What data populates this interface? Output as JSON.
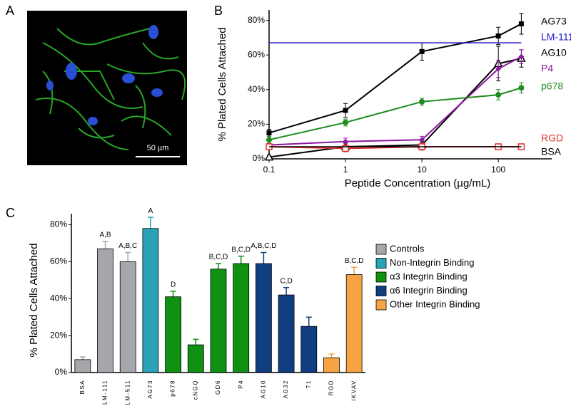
{
  "panel_a": {
    "panel_label": "A",
    "scale_bar": "50 µm"
  },
  "chart_data": [
    {
      "type": "line",
      "panel_label": "B",
      "x_label": "Peptide Concentration (µg/mL)",
      "y_label": "% Plated Cells Attached",
      "x": [
        0.1,
        1,
        10,
        100,
        200
      ],
      "xscale": "log",
      "xlim": [
        0.1,
        500
      ],
      "xticks": [
        0.1,
        1,
        10,
        100
      ],
      "ylim": [
        0,
        86
      ],
      "yticks": [
        {
          "value": 0,
          "label": "0%"
        },
        {
          "value": 20,
          "label": "20%"
        },
        {
          "value": 40,
          "label": "40%"
        },
        {
          "value": 60,
          "label": "60%"
        },
        {
          "value": 80,
          "label": "80%"
        }
      ],
      "series": [
        {
          "name": "AG73",
          "color": "#000000",
          "marker": "square",
          "values": [
            15,
            28,
            62,
            71,
            78
          ],
          "errors": [
            2,
            4,
            5,
            5,
            6
          ]
        },
        {
          "name": "LM-111",
          "color": "#1a1acc",
          "marker": "none",
          "values": [
            67,
            67,
            67,
            67,
            67
          ]
        },
        {
          "name": "AG10",
          "color": "#000000",
          "marker": "triangle",
          "values": [
            1,
            7,
            8,
            55,
            58
          ],
          "errors": [
            1,
            2,
            2,
            10,
            5
          ]
        },
        {
          "name": "P4",
          "color": "#8b1a9e",
          "marker": "diamond",
          "values": [
            8,
            10,
            11,
            52,
            59
          ],
          "errors": [
            2,
            2,
            2,
            5,
            4
          ]
        },
        {
          "name": "p678",
          "color": "#1e8c1e",
          "marker": "circle",
          "values": [
            11,
            21,
            33,
            37,
            41
          ],
          "errors": [
            2,
            2,
            2,
            3,
            3
          ]
        },
        {
          "name": "RGD",
          "color": "#e03030",
          "marker": "open-square",
          "values": [
            7,
            6,
            7,
            7,
            7
          ],
          "errors": [
            1,
            2,
            2,
            1,
            1
          ]
        },
        {
          "name": "BSA",
          "color": "#000000",
          "marker": "none",
          "values": [
            7,
            7,
            7,
            7,
            7
          ]
        }
      ]
    },
    {
      "type": "bar",
      "panel_label": "C",
      "y_label": "% Plated Cells Attached",
      "categories": [
        "BSA",
        "LM-111",
        "LM-511",
        "AG73",
        "p678",
        "cNGQ",
        "GD6",
        "P4",
        "AG10",
        "AG32",
        "T1",
        "RGD",
        "IKVAV"
      ],
      "ylim": [
        0,
        86
      ],
      "yticks": [
        {
          "value": 0,
          "label": "0%"
        },
        {
          "value": 20,
          "label": "20%"
        },
        {
          "value": 40,
          "label": "40%"
        },
        {
          "value": 60,
          "label": "60%"
        },
        {
          "value": 80,
          "label": "80%"
        }
      ],
      "annotations": [
        null,
        "A,B",
        "A,B,C",
        "A",
        "D",
        null,
        "B,C,D",
        "B,C,D",
        "A,B,C,D",
        "C,D",
        null,
        null,
        "B,C,D"
      ],
      "errors": [
        1.5,
        4,
        5,
        6,
        3,
        3,
        3,
        4,
        6,
        4,
        5,
        2,
        4
      ],
      "series": [
        {
          "name": "Controls",
          "color": "#a6a6ad",
          "values": [
            7,
            67,
            60,
            null,
            null,
            null,
            null,
            null,
            null,
            null,
            null,
            null,
            null
          ]
        },
        {
          "name": "Non-Integrin Binding",
          "color": "#2aa3b8",
          "values": [
            null,
            null,
            null,
            78,
            null,
            null,
            null,
            null,
            null,
            null,
            null,
            null,
            null
          ]
        },
        {
          "name": "α3 Integrin Binding",
          "color": "#119111",
          "values": [
            null,
            null,
            null,
            null,
            41,
            15,
            56,
            59,
            null,
            null,
            null,
            null,
            null
          ]
        },
        {
          "name": "α6 Integrin Binding",
          "color": "#103e80",
          "values": [
            null,
            null,
            null,
            null,
            null,
            null,
            null,
            null,
            59,
            42,
            25,
            null,
            null
          ]
        },
        {
          "name": "Other Integrin Binding",
          "color": "#f6a443",
          "values": [
            null,
            null,
            null,
            null,
            null,
            null,
            null,
            null,
            null,
            null,
            null,
            8,
            53
          ]
        }
      ]
    }
  ]
}
